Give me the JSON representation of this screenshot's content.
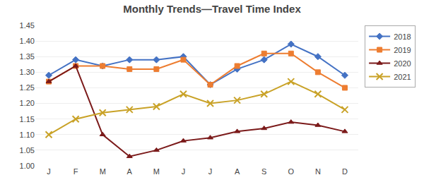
{
  "chart_data": {
    "type": "line",
    "title": "Monthly Trends—Travel Time Index",
    "categories": [
      "J",
      "F",
      "M",
      "A",
      "M",
      "J",
      "J",
      "A",
      "S",
      "O",
      "N",
      "D"
    ],
    "series": [
      {
        "name": "2018",
        "color": "#4472C4",
        "marker": "diamond",
        "values": [
          1.29,
          1.34,
          1.32,
          1.34,
          1.34,
          1.35,
          1.26,
          1.31,
          1.34,
          1.39,
          1.35,
          1.29
        ]
      },
      {
        "name": "2019",
        "color": "#ED7D31",
        "marker": "square",
        "values": [
          1.27,
          1.32,
          1.32,
          1.31,
          1.31,
          1.34,
          1.26,
          1.32,
          1.36,
          1.36,
          1.3,
          1.25
        ]
      },
      {
        "name": "2020",
        "color": "#7B1A1A",
        "marker": "triangle-up",
        "values": [
          1.27,
          1.32,
          1.1,
          1.03,
          1.05,
          1.08,
          1.09,
          1.11,
          1.12,
          1.14,
          1.13,
          1.11
        ]
      },
      {
        "name": "2021",
        "color": "#C9A227",
        "marker": "x",
        "values": [
          1.1,
          1.15,
          1.17,
          1.18,
          1.19,
          1.23,
          1.2,
          1.21,
          1.23,
          1.27,
          1.23,
          1.18
        ]
      }
    ],
    "ylim": [
      1.0,
      1.45
    ],
    "yticks": [
      {
        "value": 1.0,
        "label": "1.00"
      },
      {
        "value": 1.05,
        "label": "1.05"
      },
      {
        "value": 1.1,
        "label": "1.10"
      },
      {
        "value": 1.15,
        "label": "1.15"
      },
      {
        "value": 1.2,
        "label": "1.20"
      },
      {
        "value": 1.25,
        "label": "1.25"
      },
      {
        "value": 1.3,
        "label": "1.30"
      },
      {
        "value": 1.35,
        "label": "1.35"
      },
      {
        "value": 1.4,
        "label": "1.40"
      },
      {
        "value": 1.45,
        "label": "1.45"
      }
    ],
    "grid": true,
    "legend": "right"
  }
}
